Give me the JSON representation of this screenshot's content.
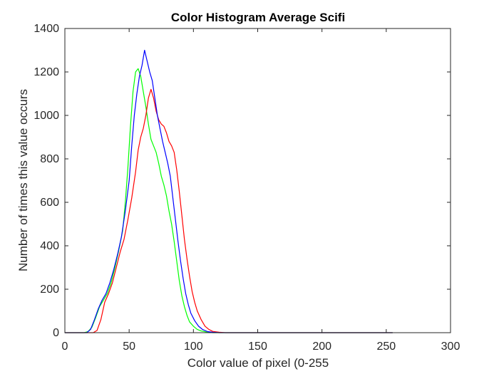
{
  "chart_data": {
    "type": "line",
    "title": "Color Histogram Average Scifi",
    "xlabel": "Color value of pixel (0-255",
    "ylabel": "Number of times this value occurs",
    "xlim": [
      0,
      300
    ],
    "ylim": [
      0,
      1400
    ],
    "xticks": [
      "0",
      "50",
      "100",
      "150",
      "200",
      "250",
      "300"
    ],
    "yticks": [
      "0",
      "200",
      "400",
      "600",
      "800",
      "1000",
      "1200",
      "1400"
    ],
    "grid": false,
    "legend": "none",
    "series": [
      {
        "color": "#00ff00",
        "points": [
          [
            0,
            0
          ],
          [
            15,
            0
          ],
          [
            18,
            5
          ],
          [
            21,
            25
          ],
          [
            24,
            70
          ],
          [
            27,
            120
          ],
          [
            30,
            150
          ],
          [
            33,
            180
          ],
          [
            36,
            230
          ],
          [
            39,
            300
          ],
          [
            42,
            380
          ],
          [
            45,
            470
          ],
          [
            47,
            600
          ],
          [
            49,
            760
          ],
          [
            51,
            950
          ],
          [
            53,
            1110
          ],
          [
            55,
            1200
          ],
          [
            57,
            1215
          ],
          [
            59,
            1180
          ],
          [
            61,
            1110
          ],
          [
            63,
            1040
          ],
          [
            65,
            960
          ],
          [
            67,
            890
          ],
          [
            69,
            860
          ],
          [
            71,
            830
          ],
          [
            73,
            780
          ],
          [
            75,
            720
          ],
          [
            77,
            680
          ],
          [
            79,
            630
          ],
          [
            81,
            560
          ],
          [
            83,
            500
          ],
          [
            85,
            420
          ],
          [
            87,
            330
          ],
          [
            89,
            240
          ],
          [
            91,
            170
          ],
          [
            93,
            120
          ],
          [
            95,
            80
          ],
          [
            97,
            50
          ],
          [
            100,
            30
          ],
          [
            103,
            15
          ],
          [
            106,
            8
          ],
          [
            110,
            3
          ],
          [
            115,
            0
          ],
          [
            255,
            0
          ]
        ]
      },
      {
        "color": "#ff0000",
        "points": [
          [
            0,
            0
          ],
          [
            22,
            0
          ],
          [
            25,
            10
          ],
          [
            28,
            60
          ],
          [
            31,
            140
          ],
          [
            34,
            180
          ],
          [
            37,
            230
          ],
          [
            40,
            300
          ],
          [
            43,
            370
          ],
          [
            46,
            430
          ],
          [
            49,
            520
          ],
          [
            52,
            620
          ],
          [
            55,
            740
          ],
          [
            57,
            840
          ],
          [
            59,
            900
          ],
          [
            61,
            940
          ],
          [
            63,
            1000
          ],
          [
            65,
            1080
          ],
          [
            67,
            1120
          ],
          [
            69,
            1080
          ],
          [
            71,
            1020
          ],
          [
            73,
            980
          ],
          [
            75,
            960
          ],
          [
            77,
            950
          ],
          [
            79,
            920
          ],
          [
            81,
            880
          ],
          [
            83,
            860
          ],
          [
            85,
            830
          ],
          [
            87,
            750
          ],
          [
            89,
            650
          ],
          [
            91,
            540
          ],
          [
            93,
            430
          ],
          [
            95,
            340
          ],
          [
            97,
            260
          ],
          [
            99,
            190
          ],
          [
            101,
            140
          ],
          [
            103,
            100
          ],
          [
            106,
            60
          ],
          [
            109,
            30
          ],
          [
            112,
            15
          ],
          [
            115,
            6
          ],
          [
            120,
            2
          ],
          [
            125,
            0
          ],
          [
            255,
            0
          ]
        ]
      },
      {
        "color": "#0000ff",
        "points": [
          [
            0,
            0
          ],
          [
            17,
            0
          ],
          [
            20,
            15
          ],
          [
            23,
            60
          ],
          [
            26,
            110
          ],
          [
            29,
            150
          ],
          [
            32,
            180
          ],
          [
            35,
            230
          ],
          [
            38,
            290
          ],
          [
            41,
            360
          ],
          [
            44,
            440
          ],
          [
            47,
            560
          ],
          [
            50,
            700
          ],
          [
            52,
            860
          ],
          [
            54,
            1000
          ],
          [
            56,
            1100
          ],
          [
            58,
            1180
          ],
          [
            60,
            1230
          ],
          [
            62,
            1300
          ],
          [
            64,
            1250
          ],
          [
            66,
            1200
          ],
          [
            68,
            1160
          ],
          [
            70,
            1080
          ],
          [
            72,
            1000
          ],
          [
            74,
            940
          ],
          [
            76,
            880
          ],
          [
            78,
            830
          ],
          [
            80,
            780
          ],
          [
            82,
            720
          ],
          [
            84,
            620
          ],
          [
            86,
            520
          ],
          [
            88,
            420
          ],
          [
            90,
            330
          ],
          [
            92,
            250
          ],
          [
            94,
            180
          ],
          [
            96,
            130
          ],
          [
            98,
            90
          ],
          [
            101,
            55
          ],
          [
            104,
            30
          ],
          [
            107,
            15
          ],
          [
            111,
            5
          ],
          [
            115,
            2
          ],
          [
            120,
            0
          ],
          [
            255,
            0
          ]
        ]
      }
    ]
  }
}
